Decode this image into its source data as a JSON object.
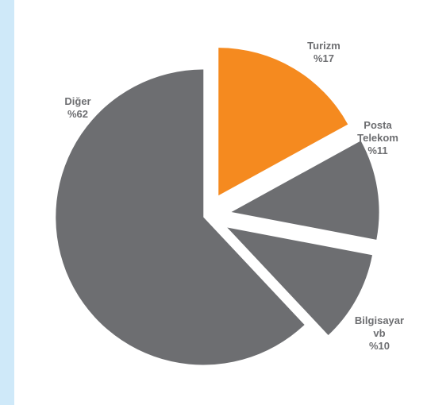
{
  "chart_data": {
    "type": "pie",
    "categories": [
      "Turizm",
      "Posta Telekom",
      "Bilgisayar vb",
      "Diğer"
    ],
    "values": [
      17,
      11,
      10,
      62
    ],
    "value_labels": [
      "%17",
      "%11",
      "%10",
      "%62"
    ],
    "colors": [
      "#f58a1f",
      "#6d6e71",
      "#6d6e71",
      "#6d6e71"
    ]
  }
}
